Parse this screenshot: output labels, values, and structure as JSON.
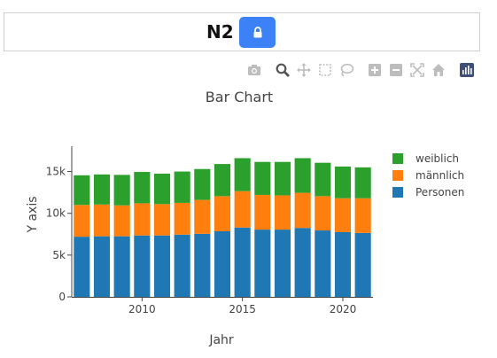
{
  "header": {
    "title": "N2"
  },
  "icons": {
    "lock": "lock-icon",
    "modebar": [
      "camera-icon",
      "zoom-icon",
      "pan-icon",
      "box-select-icon",
      "lasso-icon",
      "zoom-in-icon",
      "zoom-out-icon",
      "autoscale-icon",
      "home-icon",
      "plotly-logo-icon"
    ]
  },
  "colors": {
    "accent": "#3c82f6",
    "series": [
      "#1f77b4",
      "#ff7f0e",
      "#2ca02c"
    ],
    "modebar_icon": "#bdbdbd",
    "modebar_active": "#555555",
    "logo_bg": "#3f4f75"
  },
  "chart_data": {
    "type": "bar",
    "stacked": true,
    "title": "Bar Chart",
    "xlabel": "Jahr",
    "ylabel": "Y axis",
    "x": [
      2007,
      2008,
      2009,
      2010,
      2011,
      2012,
      2013,
      2014,
      2015,
      2016,
      2017,
      2018,
      2019,
      2020,
      2021
    ],
    "xticks": [
      2010,
      2015,
      2020
    ],
    "yticks": [
      0,
      5000,
      10000,
      15000
    ],
    "ytick_labels": [
      "0",
      "5k",
      "10k",
      "15k"
    ],
    "ylim": [
      0,
      17500
    ],
    "xlim": [
      2006.5,
      2021.5
    ],
    "series": [
      {
        "name": "Personen",
        "values": [
          7200,
          7250,
          7250,
          7350,
          7350,
          7450,
          7550,
          7850,
          8300,
          8050,
          8050,
          8250,
          7950,
          7750,
          7650
        ]
      },
      {
        "name": "männlich",
        "values": [
          3800,
          3800,
          3700,
          3850,
          3750,
          3800,
          4050,
          4200,
          4350,
          4150,
          4100,
          4200,
          4100,
          4050,
          4150
        ]
      },
      {
        "name": "weiblich",
        "values": [
          3550,
          3600,
          3650,
          3750,
          3650,
          3750,
          3700,
          3850,
          3950,
          3950,
          4000,
          4150,
          4000,
          3800,
          3700
        ]
      }
    ],
    "legend": {
      "placement": "right",
      "order": [
        "weiblich",
        "männlich",
        "Personen"
      ]
    },
    "grid": false
  }
}
